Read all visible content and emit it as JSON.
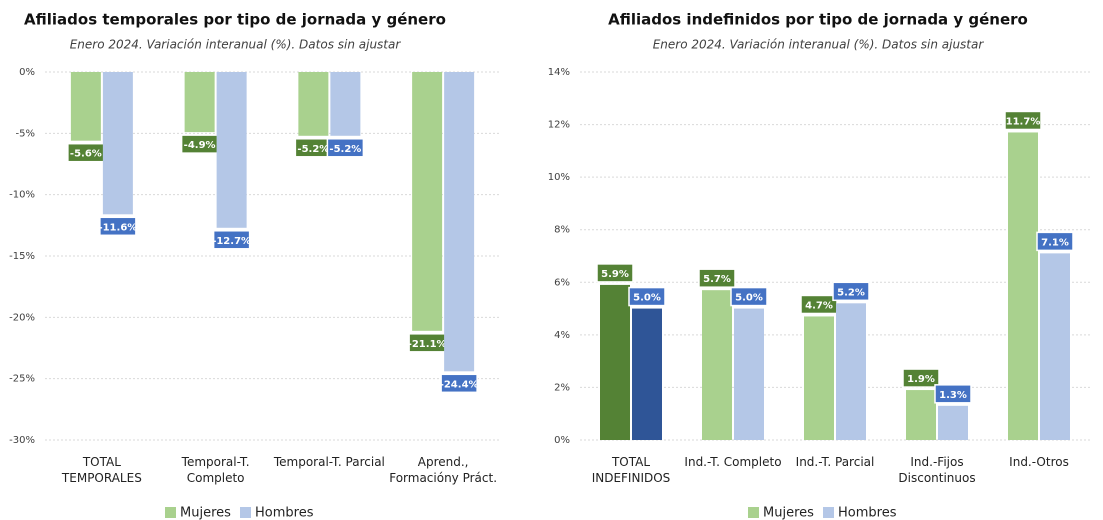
{
  "chart_data": [
    {
      "type": "bar",
      "title": "Afiliados temporales por tipo de jornada y género",
      "subtitle": "Enero 2024. Variación interanual (%). Datos sin ajustar",
      "categories": [
        "TOTAL TEMPORALES",
        "Temporal-T. Completo",
        "Temporal-T. Parcial",
        "Aprend., Formacióny Práct."
      ],
      "series": [
        {
          "name": "Mujeres",
          "color": "#a9d18e",
          "label_color": "#548235",
          "values": [
            -5.6,
            -4.9,
            -5.2,
            -21.1
          ],
          "value_labels": [
            "-5.6%",
            "-4.9%",
            "-5.2%",
            "-21.1%"
          ]
        },
        {
          "name": "Hombres",
          "color": "#b4c7e7",
          "label_color": "#4472c4",
          "values": [
            -11.6,
            -12.7,
            -5.2,
            -24.4
          ],
          "value_labels": [
            "-11.6%",
            "-12.7%",
            "-5.2%",
            "-24.4%"
          ]
        }
      ],
      "ylim": [
        -30,
        0
      ],
      "yticks": [
        {
          "value": 0,
          "label": "0%"
        },
        {
          "value": -5,
          "label": "-5%"
        },
        {
          "value": -10,
          "label": "-10%"
        },
        {
          "value": -15,
          "label": "-15%"
        },
        {
          "value": -20,
          "label": "-20%"
        },
        {
          "value": -25,
          "label": "-25%"
        },
        {
          "value": -30,
          "label": "-30%"
        }
      ],
      "grid": true
    },
    {
      "type": "bar",
      "title": "Afiliados indefinidos por tipo de jornada y género",
      "subtitle": "Enero 2024. Variación interanual (%). Datos sin ajustar",
      "categories": [
        "TOTAL INDEFINIDOS",
        "Ind.-T. Completo",
        "Ind.-T. Parcial",
        "Ind.-Fijos Discontinuos",
        "Ind.-Otros"
      ],
      "series": [
        {
          "name": "Mujeres",
          "color": "#a9d18e",
          "colors": [
            "#548235",
            "#a9d18e",
            "#a9d18e",
            "#a9d18e",
            "#a9d18e"
          ],
          "label_color": "#548235",
          "values": [
            5.9,
            5.7,
            4.7,
            1.9,
            11.7
          ],
          "value_labels": [
            "5.9%",
            "5.7%",
            "4.7%",
            "1.9%",
            "11.7%"
          ]
        },
        {
          "name": "Hombres",
          "color": "#b4c7e7",
          "colors": [
            "#2f5597",
            "#b4c7e7",
            "#b4c7e7",
            "#b4c7e7",
            "#b4c7e7"
          ],
          "label_color": "#4472c4",
          "values": [
            5.0,
            5.0,
            5.2,
            1.3,
            7.1
          ],
          "value_labels": [
            "5.0%",
            "5.0%",
            "5.2%",
            "1.3%",
            "7.1%"
          ]
        }
      ],
      "ylim": [
        0,
        14
      ],
      "yticks": [
        {
          "value": 0,
          "label": "0%"
        },
        {
          "value": 2,
          "label": "2%"
        },
        {
          "value": 4,
          "label": "4%"
        },
        {
          "value": 6,
          "label": "6%"
        },
        {
          "value": 8,
          "label": "8%"
        },
        {
          "value": 10,
          "label": "10%"
        },
        {
          "value": 12,
          "label": "12%"
        },
        {
          "value": 14,
          "label": "14%"
        }
      ],
      "grid": true
    }
  ]
}
